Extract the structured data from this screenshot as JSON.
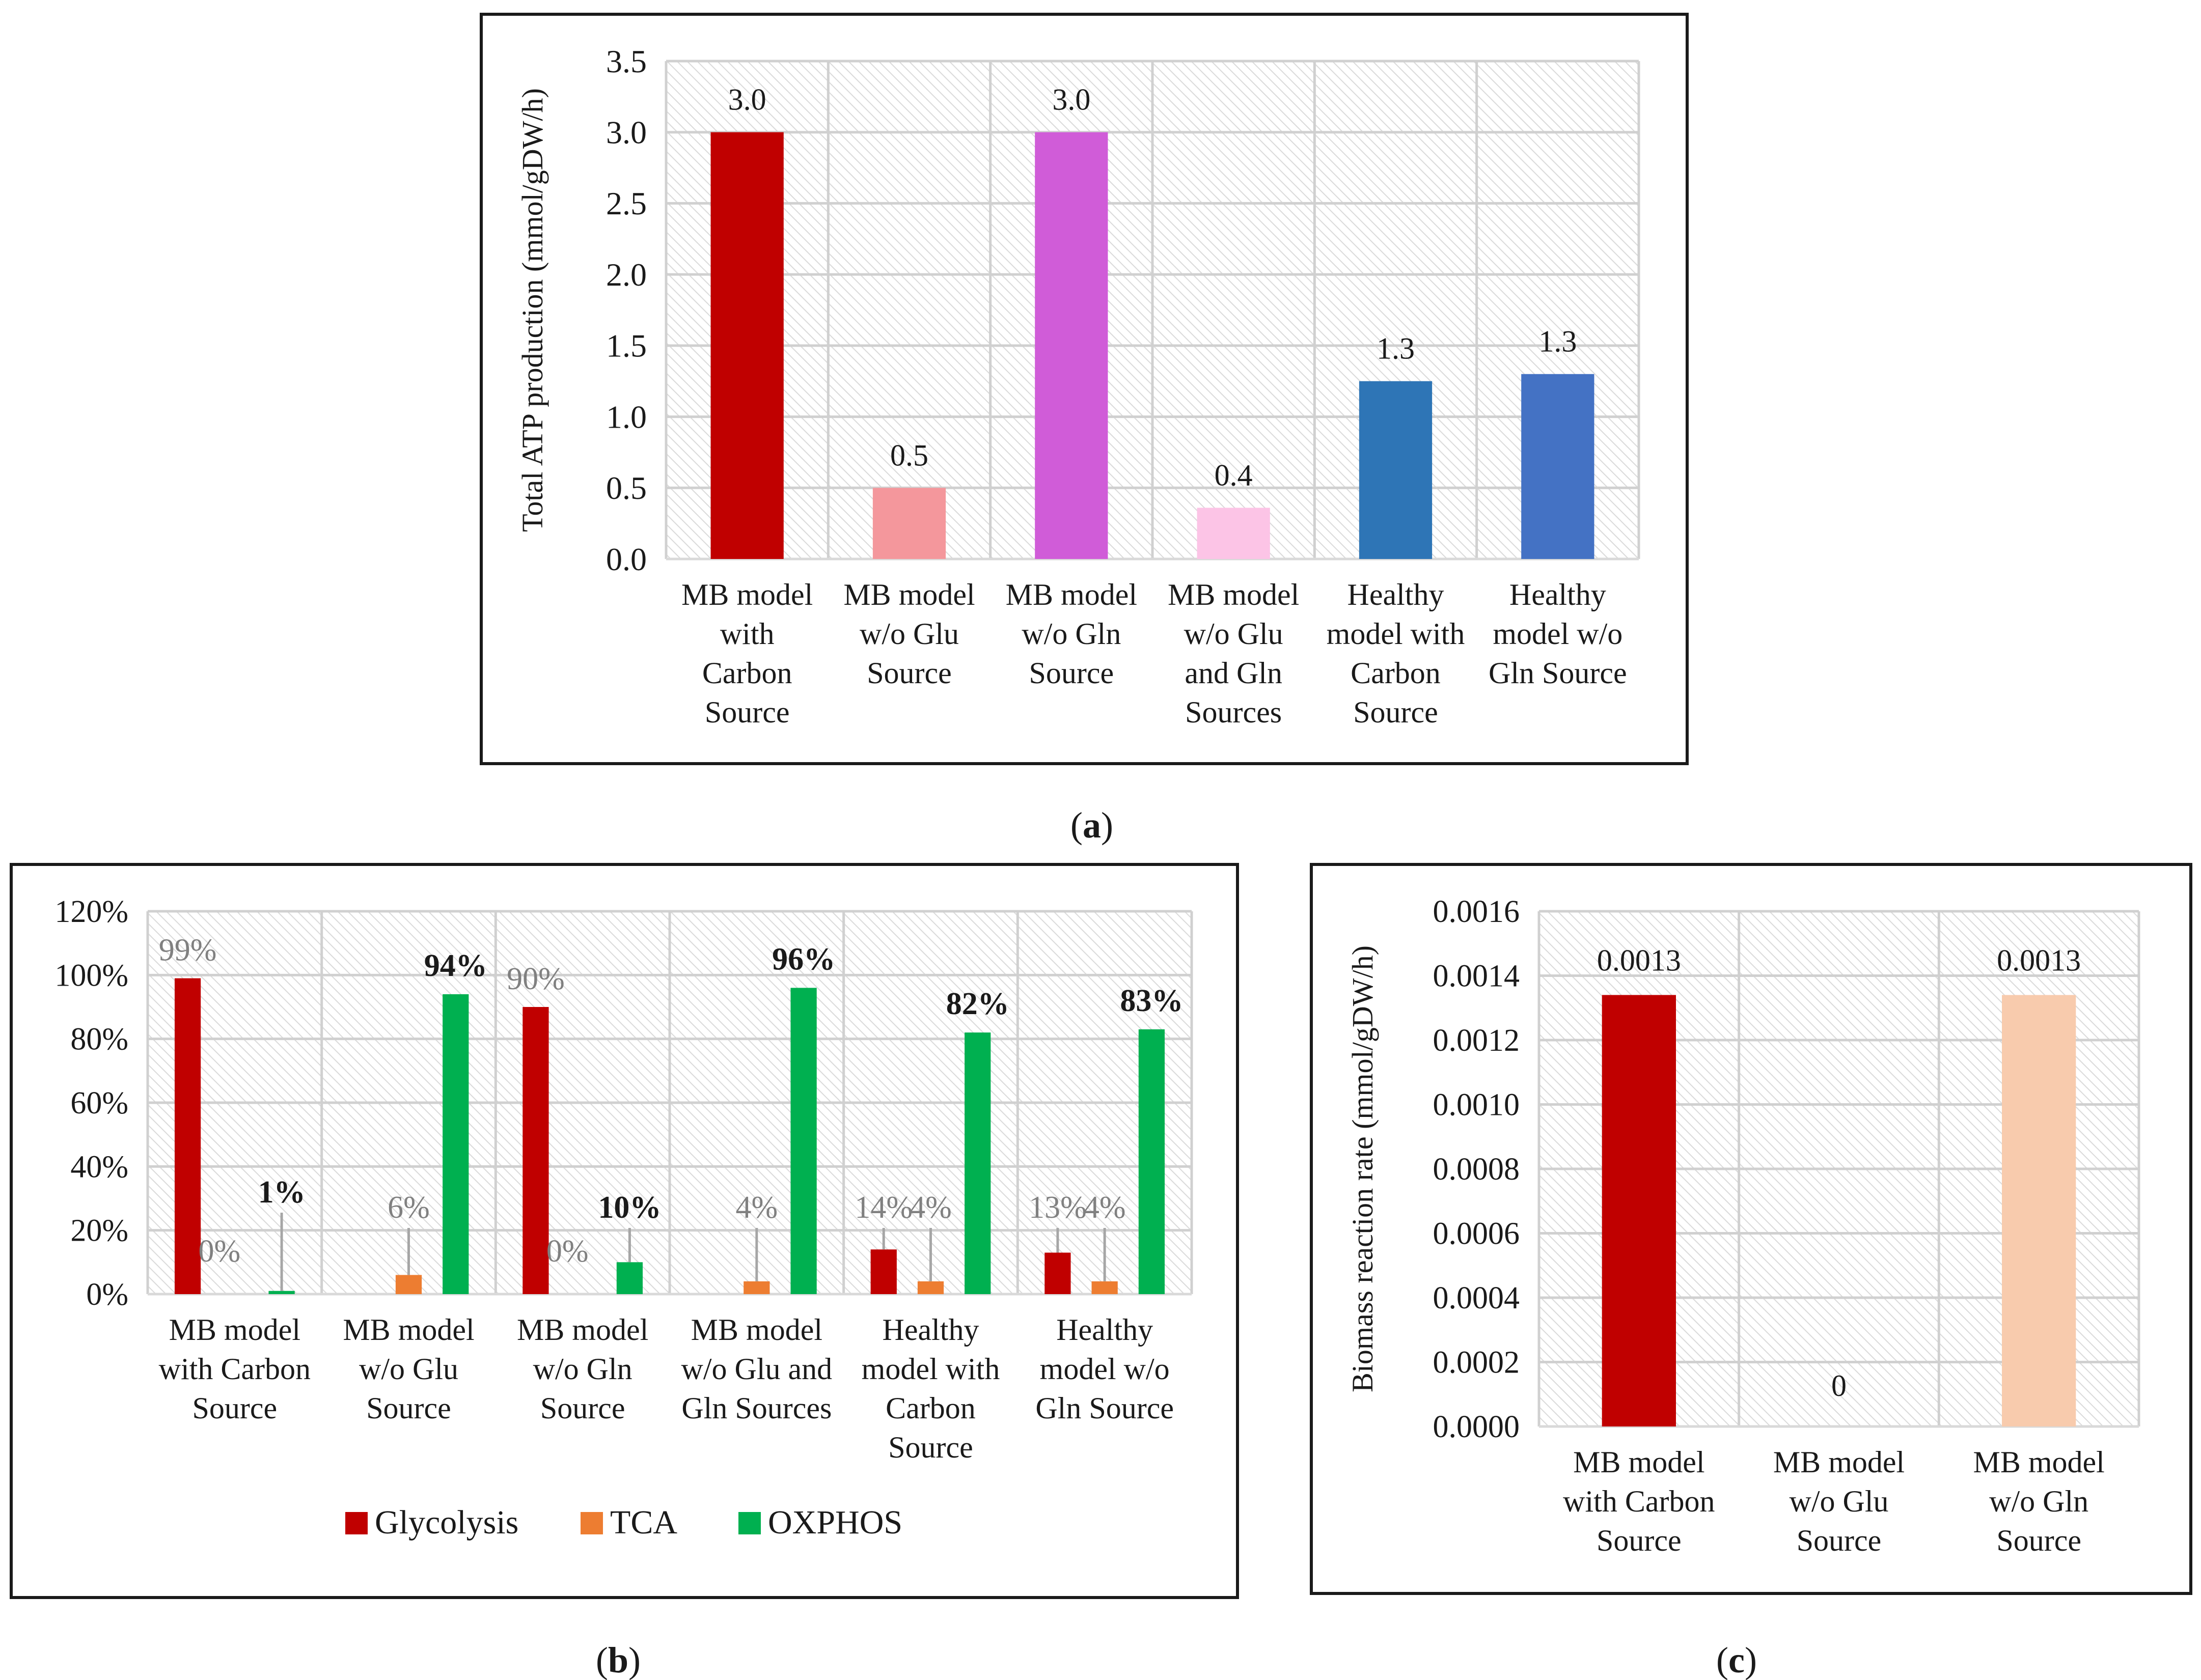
{
  "colors": {
    "frame": "#1a1a1a",
    "grid": "#d0d0d0",
    "hatch": "#d6d6d6",
    "text": "#1a1a1a",
    "label": "#808080",
    "leader": "#a6a6a6"
  },
  "captions": {
    "a": "a",
    "b": "b",
    "c": "c"
  },
  "chart_data": [
    {
      "id": "a",
      "type": "bar",
      "title": "",
      "xlabel": "",
      "ylabel": "Total ATP production (mmol/gDW/h)",
      "ylim": [
        0,
        3.5
      ],
      "yticks": [
        0,
        0.5,
        1.0,
        1.5,
        2.0,
        2.5,
        3.0,
        3.5
      ],
      "ytick_labels": [
        "0.0",
        "0.5",
        "1.0",
        "1.5",
        "2.0",
        "2.5",
        "3.0",
        "3.5"
      ],
      "grid": true,
      "categories": [
        [
          "MB model",
          "with",
          "Carbon",
          "Source"
        ],
        [
          "MB model",
          "w/o Glu",
          "Source"
        ],
        [
          "MB model",
          "w/o Gln",
          "Source"
        ],
        [
          "MB  model",
          "w/o Glu",
          "and Gln",
          "Sources"
        ],
        [
          "Healthy",
          "model with",
          "Carbon",
          "Source"
        ],
        [
          "Healthy",
          "model w/o",
          "Gln Source"
        ]
      ],
      "values": [
        3.0,
        0.5,
        3.0,
        0.36,
        1.25,
        1.3
      ],
      "data_labels": [
        "3.0",
        "0.5",
        "3.0",
        "0.4",
        "1.3",
        "1.3"
      ],
      "bar_colors": [
        "#c00000",
        "#f4979c",
        "#d05cd8",
        "#fcc4e6",
        "#2e75b6",
        "#4472c4"
      ]
    },
    {
      "id": "b",
      "type": "bar",
      "title": "",
      "xlabel": "",
      "ylabel": "",
      "ylim": [
        0,
        120
      ],
      "yticks": [
        0,
        20,
        40,
        60,
        80,
        100,
        120
      ],
      "ytick_labels": [
        "0%",
        "20%",
        "40%",
        "60%",
        "80%",
        "100%",
        "120%"
      ],
      "grid": true,
      "legend_position": "bottom",
      "categories": [
        [
          "MB model",
          "with Carbon",
          "Source"
        ],
        [
          "MB model",
          "w/o Glu",
          "Source"
        ],
        [
          "MB model",
          "w/o Gln",
          "Source"
        ],
        [
          "MB  model",
          "w/o Glu and",
          "Gln Sources"
        ],
        [
          "Healthy",
          "model with",
          "Carbon",
          "Source"
        ],
        [
          "Healthy",
          "model w/o",
          "Gln Source"
        ]
      ],
      "series": [
        {
          "name": "Glycolysis",
          "color": "#c00000",
          "values": [
            99,
            0,
            90,
            0,
            14,
            13
          ],
          "labels": [
            "99%",
            "",
            "90%",
            "",
            "14%",
            "13%"
          ]
        },
        {
          "name": "TCA",
          "color": "#ed7d31",
          "values": [
            0,
            6,
            0,
            4,
            4,
            4
          ],
          "labels": [
            "0%",
            "6%",
            "0%",
            "4%",
            "4%",
            "4%"
          ]
        },
        {
          "name": "OXPHOS",
          "color": "#00b050",
          "values": [
            1,
            94,
            10,
            96,
            82,
            83
          ],
          "labels": [
            "1%",
            "94%",
            "10%",
            "96%",
            "82%",
            "83%"
          ]
        }
      ]
    },
    {
      "id": "c",
      "type": "bar",
      "title": "",
      "xlabel": "",
      "ylabel": "Biomass reaction rate (mmol/gDW/h)",
      "ylim": [
        0,
        0.0016
      ],
      "yticks": [
        0,
        0.0002,
        0.0004,
        0.0006,
        0.0008,
        0.001,
        0.0012,
        0.0014,
        0.0016
      ],
      "ytick_labels": [
        "0.0000",
        "0.0002",
        "0.0004",
        "0.0006",
        "0.0008",
        "0.0010",
        "0.0012",
        "0.0014",
        "0.0016"
      ],
      "grid": true,
      "categories": [
        [
          "MB model",
          "with Carbon",
          "Source"
        ],
        [
          "MB model",
          "w/o Glu",
          "Source"
        ],
        [
          "MB model",
          "w/o Gln",
          "Source"
        ]
      ],
      "values": [
        0.00134,
        0,
        0.00134
      ],
      "data_labels": [
        "0.0013",
        "0",
        "0.0013"
      ],
      "bar_colors": [
        "#c00000",
        "#c00000",
        "#f8cbad"
      ]
    }
  ]
}
